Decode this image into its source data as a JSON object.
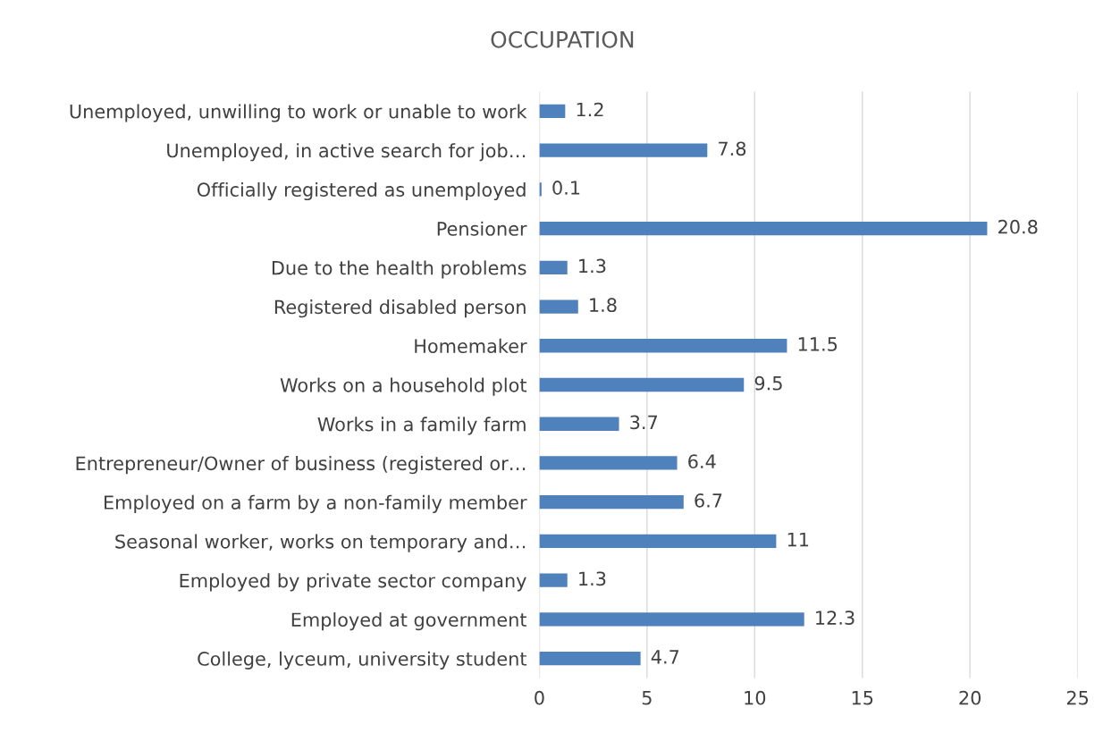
{
  "chart_data": {
    "type": "bar",
    "orientation": "horizontal",
    "title": "OCCUPATION",
    "categories": [
      "Unemployed, unwilling to work or unable to work",
      "Unemployed, in active search for job…",
      "Officially registered as unemployed",
      "Pensioner",
      "Due to the health problems",
      "Registered disabled person",
      "Homemaker",
      "Works on a household plot",
      "Works in a family farm",
      "Entrepreneur/Owner of business (registered or…",
      "Employed on a farm by a non-family member",
      "Seasonal worker, works on temporary and…",
      "Employed by private sector company",
      "Employed at government",
      "College, lyceum, university student"
    ],
    "values": [
      1.2,
      7.8,
      0.1,
      20.8,
      1.3,
      1.8,
      11.5,
      9.5,
      3.7,
      6.4,
      6.7,
      11,
      1.3,
      12.3,
      4.7
    ],
    "color": "#4f81bd",
    "xlim": [
      0,
      25
    ],
    "xticks": [
      0,
      5,
      10,
      15,
      20,
      25
    ],
    "grid": "x",
    "data_labels": true
  }
}
